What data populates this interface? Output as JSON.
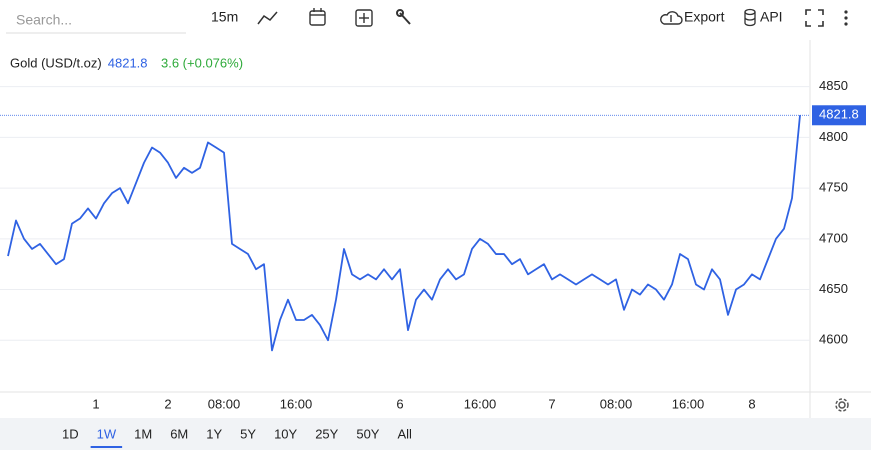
{
  "toolbar": {
    "search_placeholder": "Search...",
    "interval": "15m",
    "export": "Export",
    "api": "API"
  },
  "header": {
    "price": "4821.8",
    "change": "3.6 (+0.076%)"
  },
  "ranges": [
    "1D",
    "1W",
    "1M",
    "6M",
    "1Y",
    "5Y",
    "10Y",
    "25Y",
    "50Y",
    "All"
  ],
  "selected_range": "1W",
  "chart_data": {
    "type": "line",
    "categories": [
      null,
      null,
      null,
      null,
      null,
      null,
      null,
      null,
      null,
      null,
      null,
      "1",
      null,
      null,
      null,
      null,
      null,
      null,
      null,
      null,
      "2",
      null,
      null,
      null,
      null,
      null,
      null,
      "08:00",
      null,
      null,
      null,
      null,
      null,
      null,
      null,
      null,
      "16:00",
      null,
      null,
      null,
      null,
      null,
      null,
      null,
      null,
      null,
      null,
      null,
      null,
      "6",
      null,
      null,
      null,
      null,
      null,
      null,
      null,
      null,
      null,
      "16:00",
      null,
      null,
      null,
      null,
      null,
      null,
      null,
      null,
      "7",
      null,
      null,
      null,
      null,
      null,
      null,
      null,
      "08:00",
      null,
      null,
      null,
      null,
      null,
      null,
      null,
      null,
      "16:00",
      null,
      null,
      null,
      null,
      null,
      null,
      null,
      "8",
      null,
      null,
      null,
      null,
      null,
      null
    ],
    "series": [
      {
        "name": "Gold (USD/t.oz)",
        "color": "#2f62e3",
        "values": [
          4683,
          4718,
          4700,
          4690,
          4695,
          4685,
          4675,
          4680,
          4715,
          4720,
          4730,
          4720,
          4735,
          4745,
          4750,
          4735,
          4755,
          4775,
          4790,
          4785,
          4775,
          4760,
          4770,
          4765,
          4770,
          4795,
          4790,
          4785,
          4695,
          4690,
          4685,
          4670,
          4675,
          4590,
          4620,
          4640,
          4620,
          4620,
          4625,
          4615,
          4600,
          4640,
          4690,
          4665,
          4660,
          4665,
          4660,
          4670,
          4660,
          4670,
          4610,
          4640,
          4650,
          4640,
          4660,
          4670,
          4660,
          4665,
          4690,
          4700,
          4695,
          4685,
          4685,
          4675,
          4680,
          4665,
          4670,
          4675,
          4660,
          4665,
          4660,
          4655,
          4660,
          4665,
          4660,
          4655,
          4660,
          4630,
          4650,
          4645,
          4655,
          4650,
          4640,
          4655,
          4685,
          4680,
          4655,
          4650,
          4670,
          4660,
          4625,
          4650,
          4655,
          4665,
          4660,
          4680,
          4700,
          4710,
          4740,
          4821.8
        ]
      }
    ],
    "ylim": [
      4549,
      4896
    ],
    "yticks": [
      4600,
      4650,
      4700,
      4750,
      4800,
      4850
    ],
    "grid": true
  }
}
